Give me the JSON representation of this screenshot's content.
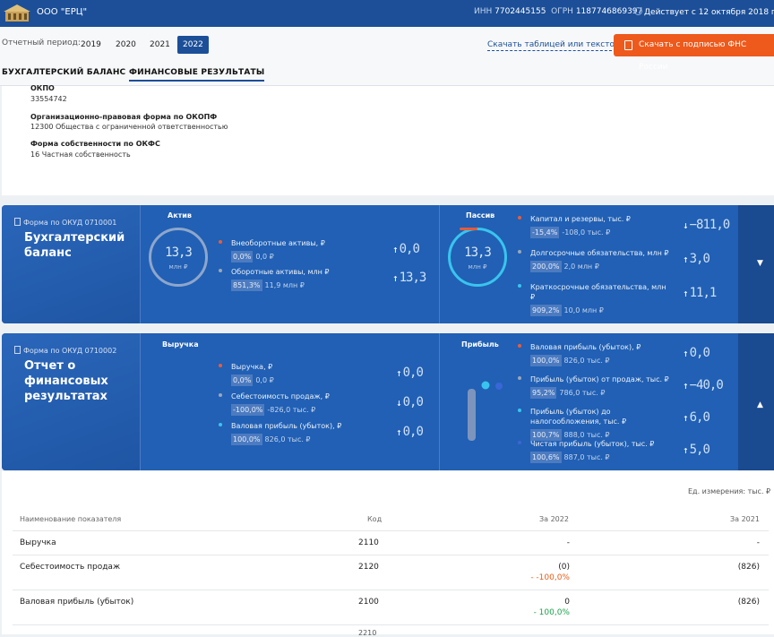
{
  "header": {
    "company": "ООО \"ЕРЦ\"",
    "inn_label": "ИНН",
    "inn": "7702445155",
    "ogrn_label": "ОГРН",
    "ogrn": "1187746869397",
    "active_text": "Действует с 12 октября 2018 года"
  },
  "toolbar": {
    "period_label": "Отчетный период:",
    "years": [
      "2019",
      "2020",
      "2021",
      "2022"
    ],
    "selected_year": "2022",
    "download_link": "Скачать таблицей или текстом",
    "download_button": "Скачать с подписью ФНС России"
  },
  "tabs": [
    "БУХГАЛТЕРСКИЙ БАЛАНС",
    "ФИНАНСОВЫЕ РЕЗУЛЬТАТЫ"
  ],
  "info": {
    "okpo_label": "ОКПО",
    "okpo": "33554742",
    "okopf_label": "Организационно-правовая форма по ОКОПФ",
    "okopf": "12300 Общества с ограниченной ответственностью",
    "okfs_label": "Форма собственности по ОКФС",
    "okfs": "16 Частная собственность"
  },
  "balance": {
    "form_code": "Форма по ОКУД 0710001",
    "title": "Бухгалтерский баланс",
    "asset_title": "Актив",
    "asset_total": "13,3",
    "asset_unit": "млн ₽",
    "asset_items": [
      {
        "label": "Внеоборотные активы, ₽",
        "pct": "0,0%",
        "amount": "0,0 ₽",
        "value": "0,0",
        "arrow": "↑",
        "color": "#e85c3c"
      },
      {
        "label": "Оборотные активы, млн ₽",
        "pct": "851,3%",
        "amount": "11,9 млн ₽",
        "value": "13,3",
        "arrow": "↑",
        "color": "#9aa7ba"
      }
    ],
    "liab_title": "Пассив",
    "liab_total": "13,3",
    "liab_unit": "млн ₽",
    "liab_items": [
      {
        "label": "Капитал и резервы, тыс. ₽",
        "pct": "-15,4%",
        "amount": "-108,0 тыс. ₽",
        "value": "−811,0",
        "arrow": "↓",
        "color": "#e85c3c"
      },
      {
        "label": "Долгосрочные обязательства, млн ₽",
        "pct": "200,0%",
        "amount": "2,0 млн ₽",
        "value": "3,0",
        "arrow": "↑",
        "color": "#9aa7ba"
      },
      {
        "label": "Краткосрочные обязательства, млн ₽",
        "pct": "909,2%",
        "amount": "10,0 млн ₽",
        "value": "11,1",
        "arrow": "↑",
        "color": "#39c4ee"
      }
    ]
  },
  "results": {
    "form_code": "Форма по ОКУД 0710002",
    "title": "Отчет о финансовых результатах",
    "revenue_title": "Выручка",
    "revenue_items": [
      {
        "label": "Выручка, ₽",
        "pct": "0,0%",
        "amount": "0,0 ₽",
        "value": "0,0",
        "arrow": "↑",
        "color": "#e85c3c"
      },
      {
        "label": "Себестоимость продаж, ₽",
        "pct": "-100,0%",
        "amount": "-826,0 тыс. ₽",
        "value": "0,0",
        "arrow": "↓",
        "color": "#9aa7ba"
      },
      {
        "label": "Валовая прибыль (убыток), ₽",
        "pct": "100,0%",
        "amount": "826,0 тыс. ₽",
        "value": "0,0",
        "arrow": "↑",
        "color": "#39c4ee"
      }
    ],
    "profit_title": "Прибыль",
    "profit_items": [
      {
        "label": "Валовая прибыль (убыток), ₽",
        "pct": "100,0%",
        "amount": "826,0 тыс. ₽",
        "value": "0,0",
        "arrow": "↑",
        "color": "#e85c3c"
      },
      {
        "label": "Прибыль (убыток) от продаж, тыс. ₽",
        "pct": "95,2%",
        "amount": "786,0 тыс. ₽",
        "value": "−40,0",
        "arrow": "↑",
        "color": "#9aa7ba"
      },
      {
        "label": "Прибыль (убыток) до налогообложения, тыс. ₽",
        "pct": "100,7%",
        "amount": "888,0 тыс. ₽",
        "value": "6,0",
        "arrow": "↑",
        "color": "#39c4ee"
      },
      {
        "label": "Чистая прибыль (убыток), тыс. ₽",
        "pct": "100,6%",
        "amount": "887,0 тыс. ₽",
        "value": "5,0",
        "arrow": "↑",
        "color": "#3a66d8"
      }
    ]
  },
  "table": {
    "units": "Ед. измерения: тыс. ₽",
    "headers": [
      "Наименование показателя",
      "Код",
      "За 2022",
      "За 2021"
    ],
    "rows": [
      {
        "name": "Выручка",
        "code": "2110",
        "y2022": "-",
        "delta": "",
        "y2021": "-"
      },
      {
        "name": "Себестоимость продаж",
        "code": "2120",
        "y2022": "(0)",
        "delta": "- -100,0%",
        "y2021": "(826)"
      },
      {
        "name": "Валовая прибыль (убыток)",
        "code": "2100",
        "y2022": "0",
        "delta": "- 100,0%",
        "y2021": "(826)"
      }
    ],
    "next_code": "2210"
  }
}
